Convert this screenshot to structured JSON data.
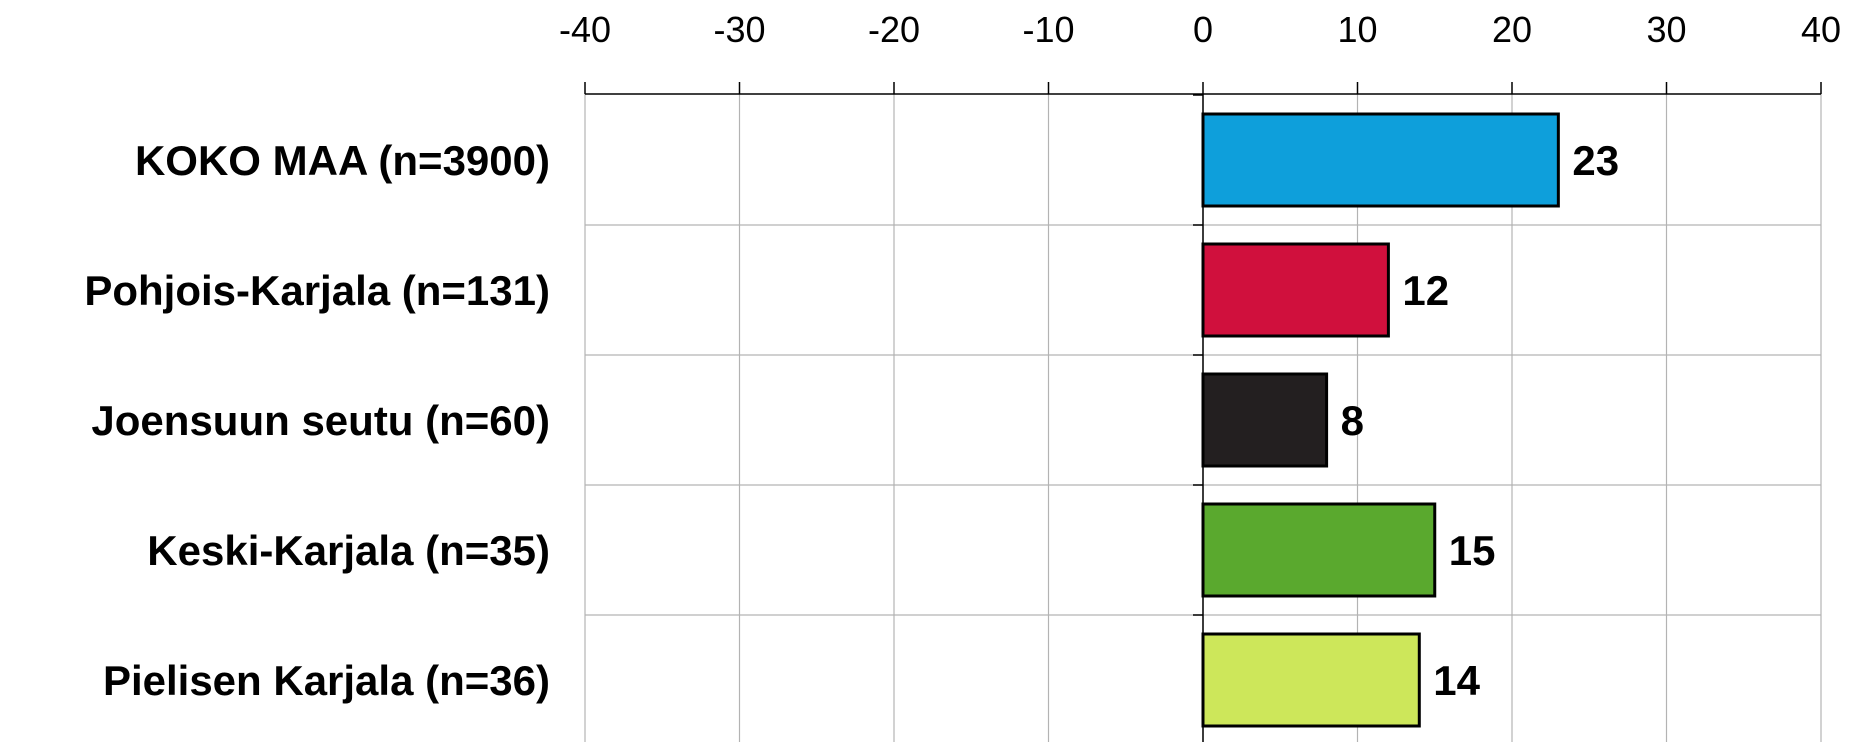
{
  "chart_data": {
    "type": "bar",
    "orientation": "horizontal",
    "categories": [
      "KOKO MAA (n=3900)",
      "Pohjois-Karjala (n=131)",
      "Joensuun seutu (n=60)",
      "Keski-Karjala (n=35)",
      "Pielisen Karjala (n=36)"
    ],
    "values": [
      23,
      12,
      8,
      15,
      14
    ],
    "data_labels": [
      "23",
      "12",
      "8",
      "15",
      "14"
    ],
    "bar_colors": [
      "#0e9fdb",
      "#d0103d",
      "#231f20",
      "#5aa92e",
      "#cde75a"
    ],
    "xlim": [
      -40,
      40
    ],
    "x_ticks": [
      -40,
      -30,
      -20,
      -10,
      0,
      10,
      20,
      30,
      40
    ],
    "x_tick_labels": [
      "-40",
      "-30",
      "-20",
      "-10",
      "0",
      "10",
      "20",
      "30",
      "40"
    ],
    "x_axis_position": "top",
    "grid": true,
    "legend": "none",
    "title": "",
    "xlabel": "",
    "ylabel": ""
  },
  "colors": {
    "grid": "#b3b3b3",
    "axis": "#000000",
    "bar_outline": "#000000"
  }
}
